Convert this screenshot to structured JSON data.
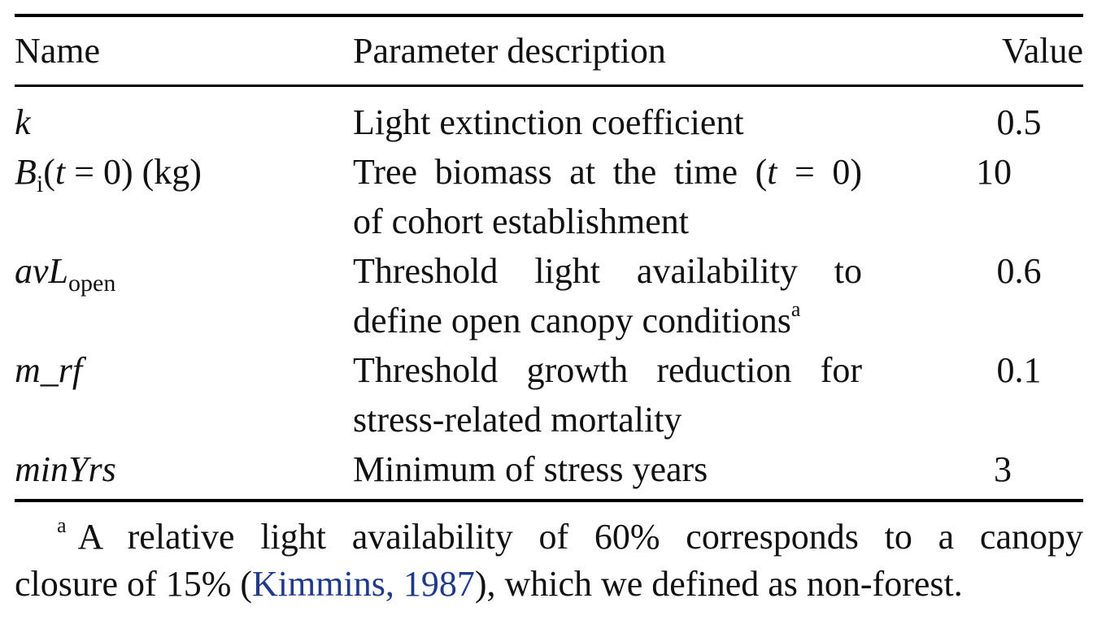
{
  "table": {
    "headers": {
      "name": "Name",
      "description": "Parameter description",
      "value": "Value"
    },
    "rows": [
      {
        "name": "k",
        "description": "Light extinction coefficient",
        "value": "0.5"
      },
      {
        "name_parts": {
          "main": "B",
          "sub": "i",
          "rest_1": "(",
          "t": "t",
          "rest_2": " = 0) (kg)"
        },
        "description_parts": {
          "line1_before": "Tree biomass at the time (",
          "line1_t": "t",
          "line1_after": " = 0)",
          "line2": "of cohort establishment"
        },
        "value": "10"
      },
      {
        "name_parts": {
          "main": "avL",
          "sub": "open"
        },
        "description_parts": {
          "line1": "Threshold light availability to",
          "line2": "define open canopy conditions",
          "footnote_mark": "a"
        },
        "value": "0.6"
      },
      {
        "name": "m_rf",
        "description_parts": {
          "line1": "Threshold growth reduction for",
          "line2": "stress-related mortality"
        },
        "value": "0.1"
      },
      {
        "name": "minYrs",
        "description": "Minimum of stress years",
        "value": "3"
      }
    ]
  },
  "footnote": {
    "mark": "a",
    "line1": "A relative light availability of 60% corresponds to a canopy",
    "line2_before": "closure of 15% (",
    "citation": "Kimmins, 1987",
    "line2_after": "), which we defined as non-forest."
  },
  "colors": {
    "text": "#111111",
    "rule": "#000000",
    "citation": "#1f3a8a"
  }
}
